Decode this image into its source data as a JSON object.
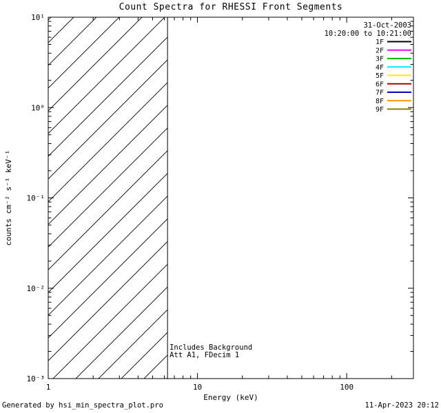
{
  "page": {
    "footer_left": "Generated by hsi_min_spectra_plot.pro",
    "footer_right": "11-Apr-2023 20:12"
  },
  "chart_data": {
    "type": "line",
    "title": "Count Spectra for RHESSI Front Segments",
    "xlabel": "Energy (keV)",
    "ylabel": "counts cm⁻² s⁻¹ keV⁻¹",
    "x_scale": "log",
    "y_scale": "log",
    "xlim": [
      1,
      280
    ],
    "ylim": [
      0.001,
      10
    ],
    "x_major_ticks": [
      1,
      10,
      100
    ],
    "x_tick_labels": [
      "1",
      "10",
      "100"
    ],
    "y_major_ticks": [
      0.001,
      0.01,
      0.1,
      1,
      10
    ],
    "y_tick_labels": [
      "10⁻³",
      "10⁻²",
      "10⁻¹",
      "10⁰",
      "10¹"
    ],
    "grid": false,
    "legend_position": "top-right",
    "date_label": "31-Oct-2003",
    "time_range_label": "10:20:00 to 10:21:00",
    "annotations": [
      "Includes Background",
      "Att A1, FDecim 1"
    ],
    "hatch_region": {
      "x_start": 1,
      "x_end": 6.3,
      "style": "diagonal-hatch"
    },
    "attenuator_boundary_kev": 6.3,
    "legend": [
      {
        "label": "1F",
        "color": "#000000"
      },
      {
        "label": "2F",
        "color": "#ff00ff"
      },
      {
        "label": "3F",
        "color": "#00bb00"
      },
      {
        "label": "4F",
        "color": "#00e8ff"
      },
      {
        "label": "5F",
        "color": "#ffee00"
      },
      {
        "label": "6F",
        "color": "#aa0000"
      },
      {
        "label": "7F",
        "color": "#0000bb"
      },
      {
        "label": "8F",
        "color": "#ff9900"
      },
      {
        "label": "9F",
        "color": "#808000"
      }
    ],
    "series": []
  }
}
